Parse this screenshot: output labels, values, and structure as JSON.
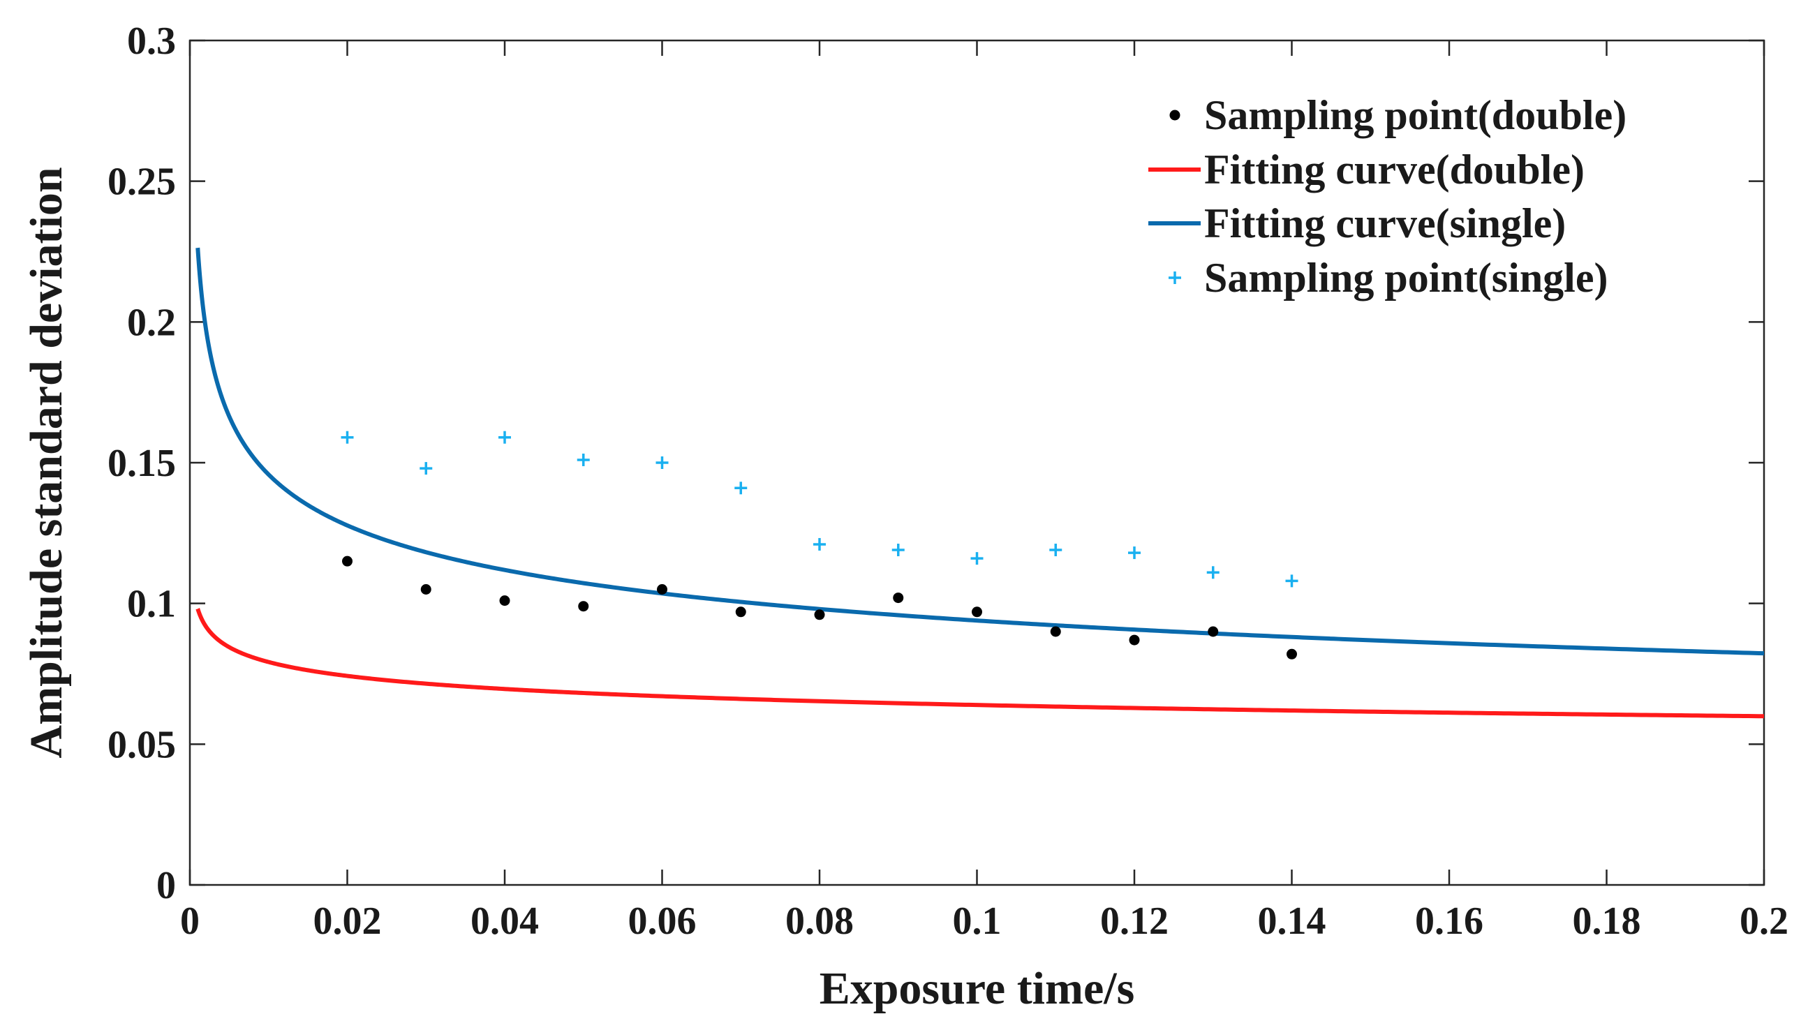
{
  "chart_data": {
    "type": "line",
    "title": "",
    "xlabel": "Exposure time/s",
    "ylabel": "Amplitude standard deviation",
    "xlim": [
      0,
      0.2
    ],
    "ylim": [
      0,
      0.3
    ],
    "xticks": [
      0,
      0.02,
      0.04,
      0.06,
      0.08,
      0.1,
      0.12,
      0.14,
      0.16,
      0.18,
      0.2
    ],
    "xtick_labels": [
      "0",
      "0.02",
      "0.04",
      "0.06",
      "0.08",
      "0.1",
      "0.12",
      "0.14",
      "0.16",
      "0.18",
      "0.2"
    ],
    "yticks": [
      0,
      0.05,
      0.1,
      0.15,
      0.2,
      0.25,
      0.3
    ],
    "ytick_labels": [
      "0",
      "0.05",
      "0.1",
      "0.15",
      "0.2",
      "0.25",
      "0.3"
    ],
    "grid": false,
    "legend_position": "top-right",
    "series": [
      {
        "name": "Sampling point(double)",
        "kind": "scatter",
        "marker": "dot",
        "color": "#000000",
        "x": [
          0.02,
          0.03,
          0.04,
          0.05,
          0.06,
          0.07,
          0.08,
          0.09,
          0.1,
          0.11,
          0.12,
          0.13,
          0.14
        ],
        "y": [
          0.115,
          0.105,
          0.101,
          0.099,
          0.105,
          0.097,
          0.096,
          0.102,
          0.097,
          0.09,
          0.087,
          0.09,
          0.082
        ]
      },
      {
        "name": "Fitting curve(double)",
        "kind": "line",
        "color": "#ff1a1a",
        "model": "y = a * x^b",
        "a": 0.0516,
        "b": -0.093,
        "x_range": [
          0.001,
          0.2
        ]
      },
      {
        "name": "Fitting curve(single)",
        "kind": "line",
        "color": "#0a6aad",
        "model": "y = a * x^b",
        "a": 0.0605,
        "b": -0.191,
        "x_range": [
          0.001,
          0.2
        ]
      },
      {
        "name": "Sampling point(single)",
        "kind": "scatter",
        "marker": "plus",
        "color": "#1ab0f0",
        "x": [
          0.02,
          0.03,
          0.04,
          0.05,
          0.06,
          0.07,
          0.08,
          0.09,
          0.1,
          0.11,
          0.12,
          0.13,
          0.14
        ],
        "y": [
          0.159,
          0.148,
          0.159,
          0.151,
          0.15,
          0.141,
          0.121,
          0.119,
          0.116,
          0.119,
          0.118,
          0.111,
          0.108
        ]
      }
    ]
  }
}
